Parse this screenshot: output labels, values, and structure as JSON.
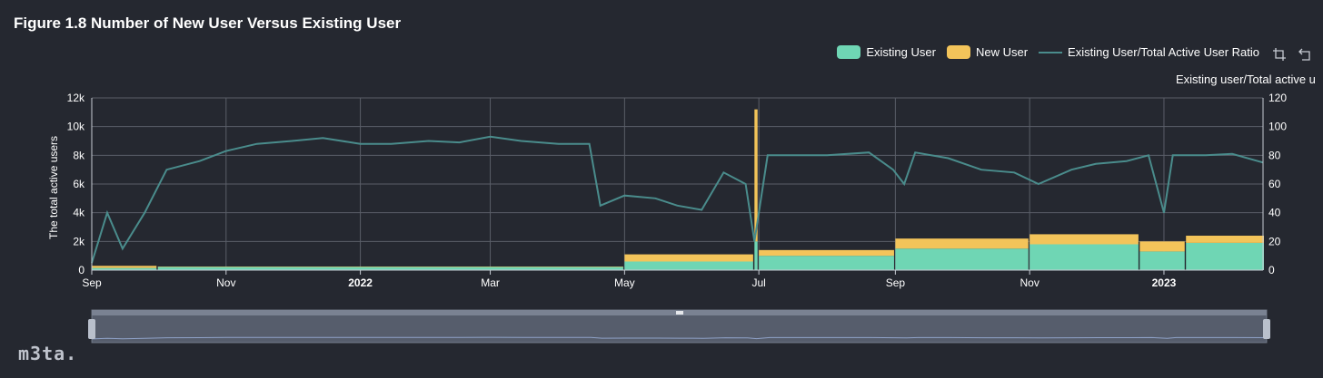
{
  "title": "Figure 1.8 Number of New User Versus Existing User",
  "legend": {
    "items": [
      {
        "label": "Existing User",
        "color": "#6fd6b4",
        "kind": "box"
      },
      {
        "label": "New User",
        "color": "#f3c45a",
        "kind": "box"
      },
      {
        "label": "Existing User/Total Active User Ratio",
        "color": "#4a8c8c",
        "kind": "line"
      }
    ]
  },
  "toolbox": {
    "icons": [
      "zoom-select-icon",
      "zoom-reset-icon"
    ]
  },
  "logo_text": "m3ta.",
  "chart_data": {
    "type": "bar",
    "title": "Figure 1.8 Number of New User Versus Existing User",
    "ylabel": "The total active users",
    "y2label": "Existing user/Total active u",
    "ylim": [
      0,
      12000
    ],
    "y2lim": [
      0,
      120
    ],
    "y_ticks": [
      "0",
      "2k",
      "4k",
      "6k",
      "8k",
      "10k",
      "12k"
    ],
    "y2_ticks": [
      "0",
      "20",
      "40",
      "60",
      "80",
      "100",
      "120"
    ],
    "x_ticks": [
      {
        "label": "Sep",
        "bold": false
      },
      {
        "label": "Nov",
        "bold": false
      },
      {
        "label": "2022",
        "bold": true
      },
      {
        "label": "Mar",
        "bold": false
      },
      {
        "label": "May",
        "bold": false
      },
      {
        "label": "Jul",
        "bold": false
      },
      {
        "label": "Sep",
        "bold": false
      },
      {
        "label": "Nov",
        "bold": false
      },
      {
        "label": "2023",
        "bold": true
      }
    ],
    "x_range": [
      "2021-09-01",
      "2023-02-15"
    ],
    "stacked": true,
    "grid": true,
    "legend_position": "top-right",
    "series": [
      {
        "name": "Existing User",
        "axis": "left",
        "type": "bar",
        "color": "#6fd6b4",
        "segments": [
          {
            "from": "2021-09-01",
            "to": "2021-09-30",
            "value": 150
          },
          {
            "from": "2021-10-01",
            "to": "2022-04-30",
            "value": 220
          },
          {
            "from": "2022-05-01",
            "to": "2022-06-28",
            "value": 600
          },
          {
            "from": "2022-06-29",
            "to": "2022-06-30",
            "value": 2000
          },
          {
            "from": "2022-07-01",
            "to": "2022-08-31",
            "value": 1000
          },
          {
            "from": "2022-09-01",
            "to": "2022-10-31",
            "value": 1500
          },
          {
            "from": "2022-11-01",
            "to": "2022-12-20",
            "value": 1800
          },
          {
            "from": "2022-12-21",
            "to": "2023-01-10",
            "value": 1300
          },
          {
            "from": "2023-01-11",
            "to": "2023-02-15",
            "value": 1900
          }
        ]
      },
      {
        "name": "New User",
        "axis": "left",
        "type": "bar",
        "color": "#f3c45a",
        "segments": [
          {
            "from": "2021-09-01",
            "to": "2021-09-30",
            "value": 150
          },
          {
            "from": "2021-10-01",
            "to": "2022-04-30",
            "value": 30
          },
          {
            "from": "2022-05-01",
            "to": "2022-06-28",
            "value": 500
          },
          {
            "from": "2022-06-29",
            "to": "2022-06-30",
            "value": 9200
          },
          {
            "from": "2022-07-01",
            "to": "2022-08-31",
            "value": 400
          },
          {
            "from": "2022-09-01",
            "to": "2022-10-31",
            "value": 700
          },
          {
            "from": "2022-11-01",
            "to": "2022-12-20",
            "value": 700
          },
          {
            "from": "2022-12-21",
            "to": "2023-01-10",
            "value": 700
          },
          {
            "from": "2023-01-11",
            "to": "2023-02-15",
            "value": 500
          }
        ]
      },
      {
        "name": "Existing User/Total Active User Ratio",
        "axis": "right",
        "type": "line",
        "color": "#4a8c8c",
        "points": [
          {
            "x": "2021-09-01",
            "y": 5
          },
          {
            "x": "2021-09-08",
            "y": 40
          },
          {
            "x": "2021-09-15",
            "y": 15
          },
          {
            "x": "2021-09-25",
            "y": 40
          },
          {
            "x": "2021-10-05",
            "y": 70
          },
          {
            "x": "2021-10-20",
            "y": 76
          },
          {
            "x": "2021-11-01",
            "y": 83
          },
          {
            "x": "2021-11-15",
            "y": 88
          },
          {
            "x": "2021-12-01",
            "y": 90
          },
          {
            "x": "2021-12-15",
            "y": 92
          },
          {
            "x": "2022-01-01",
            "y": 88
          },
          {
            "x": "2022-01-15",
            "y": 88
          },
          {
            "x": "2022-02-01",
            "y": 90
          },
          {
            "x": "2022-02-15",
            "y": 89
          },
          {
            "x": "2022-03-01",
            "y": 93
          },
          {
            "x": "2022-03-15",
            "y": 90
          },
          {
            "x": "2022-04-01",
            "y": 88
          },
          {
            "x": "2022-04-15",
            "y": 88
          },
          {
            "x": "2022-04-20",
            "y": 45
          },
          {
            "x": "2022-05-01",
            "y": 52
          },
          {
            "x": "2022-05-15",
            "y": 50
          },
          {
            "x": "2022-05-25",
            "y": 45
          },
          {
            "x": "2022-06-05",
            "y": 42
          },
          {
            "x": "2022-06-15",
            "y": 68
          },
          {
            "x": "2022-06-25",
            "y": 60
          },
          {
            "x": "2022-06-29",
            "y": 20
          },
          {
            "x": "2022-07-05",
            "y": 80
          },
          {
            "x": "2022-07-20",
            "y": 80
          },
          {
            "x": "2022-08-01",
            "y": 80
          },
          {
            "x": "2022-08-20",
            "y": 82
          },
          {
            "x": "2022-08-31",
            "y": 70
          },
          {
            "x": "2022-09-05",
            "y": 60
          },
          {
            "x": "2022-09-10",
            "y": 82
          },
          {
            "x": "2022-09-25",
            "y": 78
          },
          {
            "x": "2022-10-10",
            "y": 70
          },
          {
            "x": "2022-10-25",
            "y": 68
          },
          {
            "x": "2022-11-05",
            "y": 60
          },
          {
            "x": "2022-11-20",
            "y": 70
          },
          {
            "x": "2022-12-01",
            "y": 74
          },
          {
            "x": "2022-12-15",
            "y": 76
          },
          {
            "x": "2022-12-25",
            "y": 80
          },
          {
            "x": "2023-01-01",
            "y": 40
          },
          {
            "x": "2023-01-05",
            "y": 80
          },
          {
            "x": "2023-01-20",
            "y": 80
          },
          {
            "x": "2023-02-01",
            "y": 81
          },
          {
            "x": "2023-02-15",
            "y": 75
          }
        ]
      }
    ]
  }
}
